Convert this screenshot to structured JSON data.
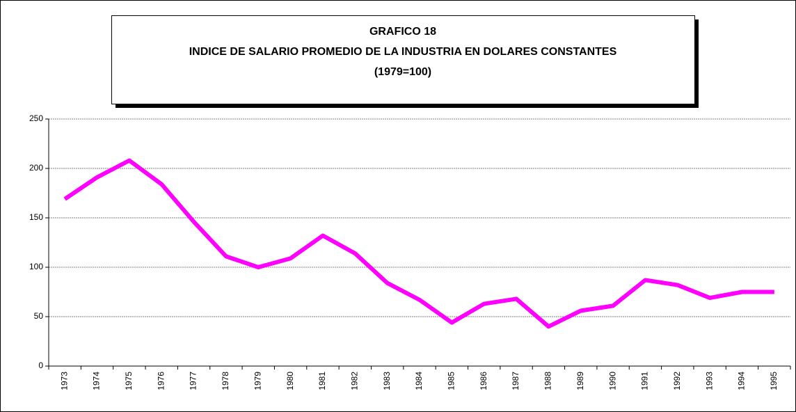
{
  "chart_data": {
    "type": "line",
    "title": [
      "GRAFICO 18",
      "INDICE DE SALARIO PROMEDIO DE LA INDUSTRIA EN DOLARES CONSTANTES",
      "(1979=100)"
    ],
    "categories": [
      "1973",
      "1974",
      "1975",
      "1976",
      "1977",
      "1978",
      "1979",
      "1980",
      "1981",
      "1982",
      "1983",
      "1984",
      "1985",
      "1986",
      "1987",
      "1988",
      "1989",
      "1990",
      "1991",
      "1992",
      "1993",
      "1994",
      "1995"
    ],
    "series": [
      {
        "color": "#ff00ff",
        "values": [
          169,
          191,
          208,
          184,
          146,
          111,
          100,
          109,
          132,
          114,
          84,
          67,
          44,
          63,
          68,
          40,
          56,
          61,
          87,
          82,
          69,
          75,
          75
        ]
      }
    ],
    "ylim": [
      0,
      250
    ],
    "yticks": [
      0,
      50,
      100,
      150,
      200,
      250
    ],
    "grid": true
  }
}
